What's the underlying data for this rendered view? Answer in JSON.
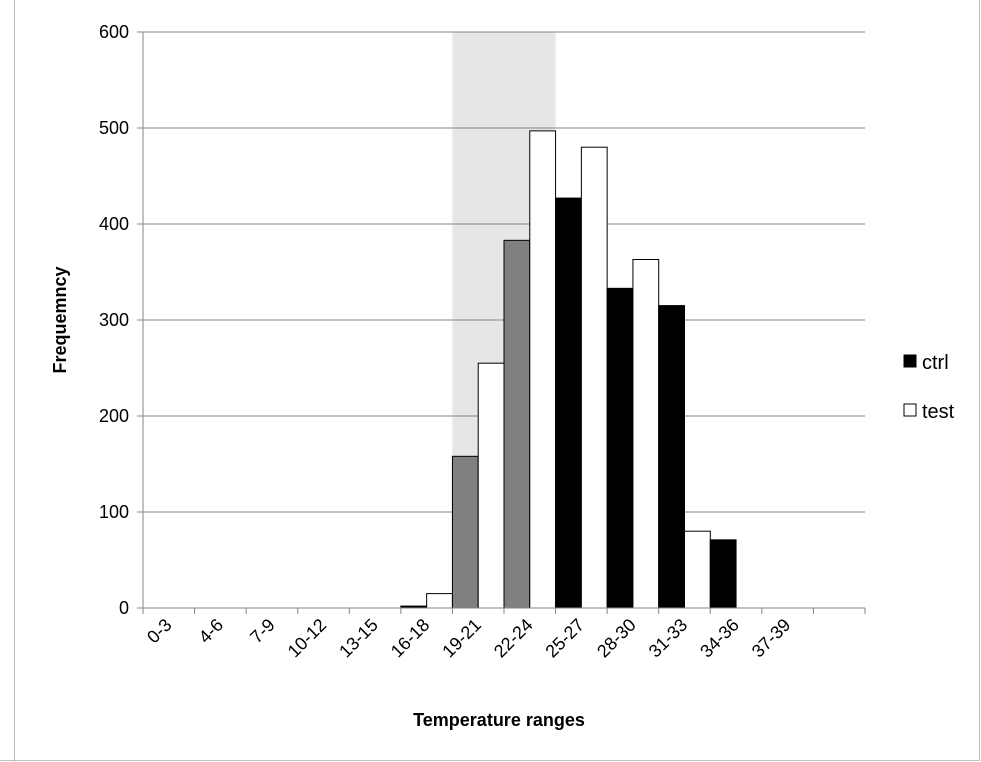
{
  "chart_data": {
    "type": "bar",
    "title": "",
    "xlabel": "Temperature ranges",
    "ylabel": "Frequemncy",
    "ylim": [
      0,
      600
    ],
    "yticks": [
      0,
      100,
      200,
      300,
      400,
      500,
      600
    ],
    "grid": true,
    "legend_position": "right",
    "categories": [
      "0-3",
      "4-6",
      "7-9",
      "10-12",
      "13-15",
      "16-18",
      "19-21",
      "22-24",
      "25-27",
      "28-30",
      "31-33",
      "34-36",
      "37-39",
      ""
    ],
    "series": [
      {
        "name": "ctrl",
        "color": "#000000",
        "values": [
          0,
          0,
          0,
          0,
          0,
          2,
          158,
          383,
          427,
          333,
          315,
          71,
          0,
          0
        ]
      },
      {
        "name": "test",
        "color": "#ffffff",
        "values": [
          0,
          0,
          0,
          0,
          0,
          15,
          255,
          497,
          480,
          363,
          80,
          0,
          0,
          0
        ]
      }
    ],
    "highlight": {
      "category_range": [
        "19-21",
        "22-24"
      ],
      "shade_color": "#e6e6e6",
      "ctrl_color_in_range": "#808080"
    }
  }
}
